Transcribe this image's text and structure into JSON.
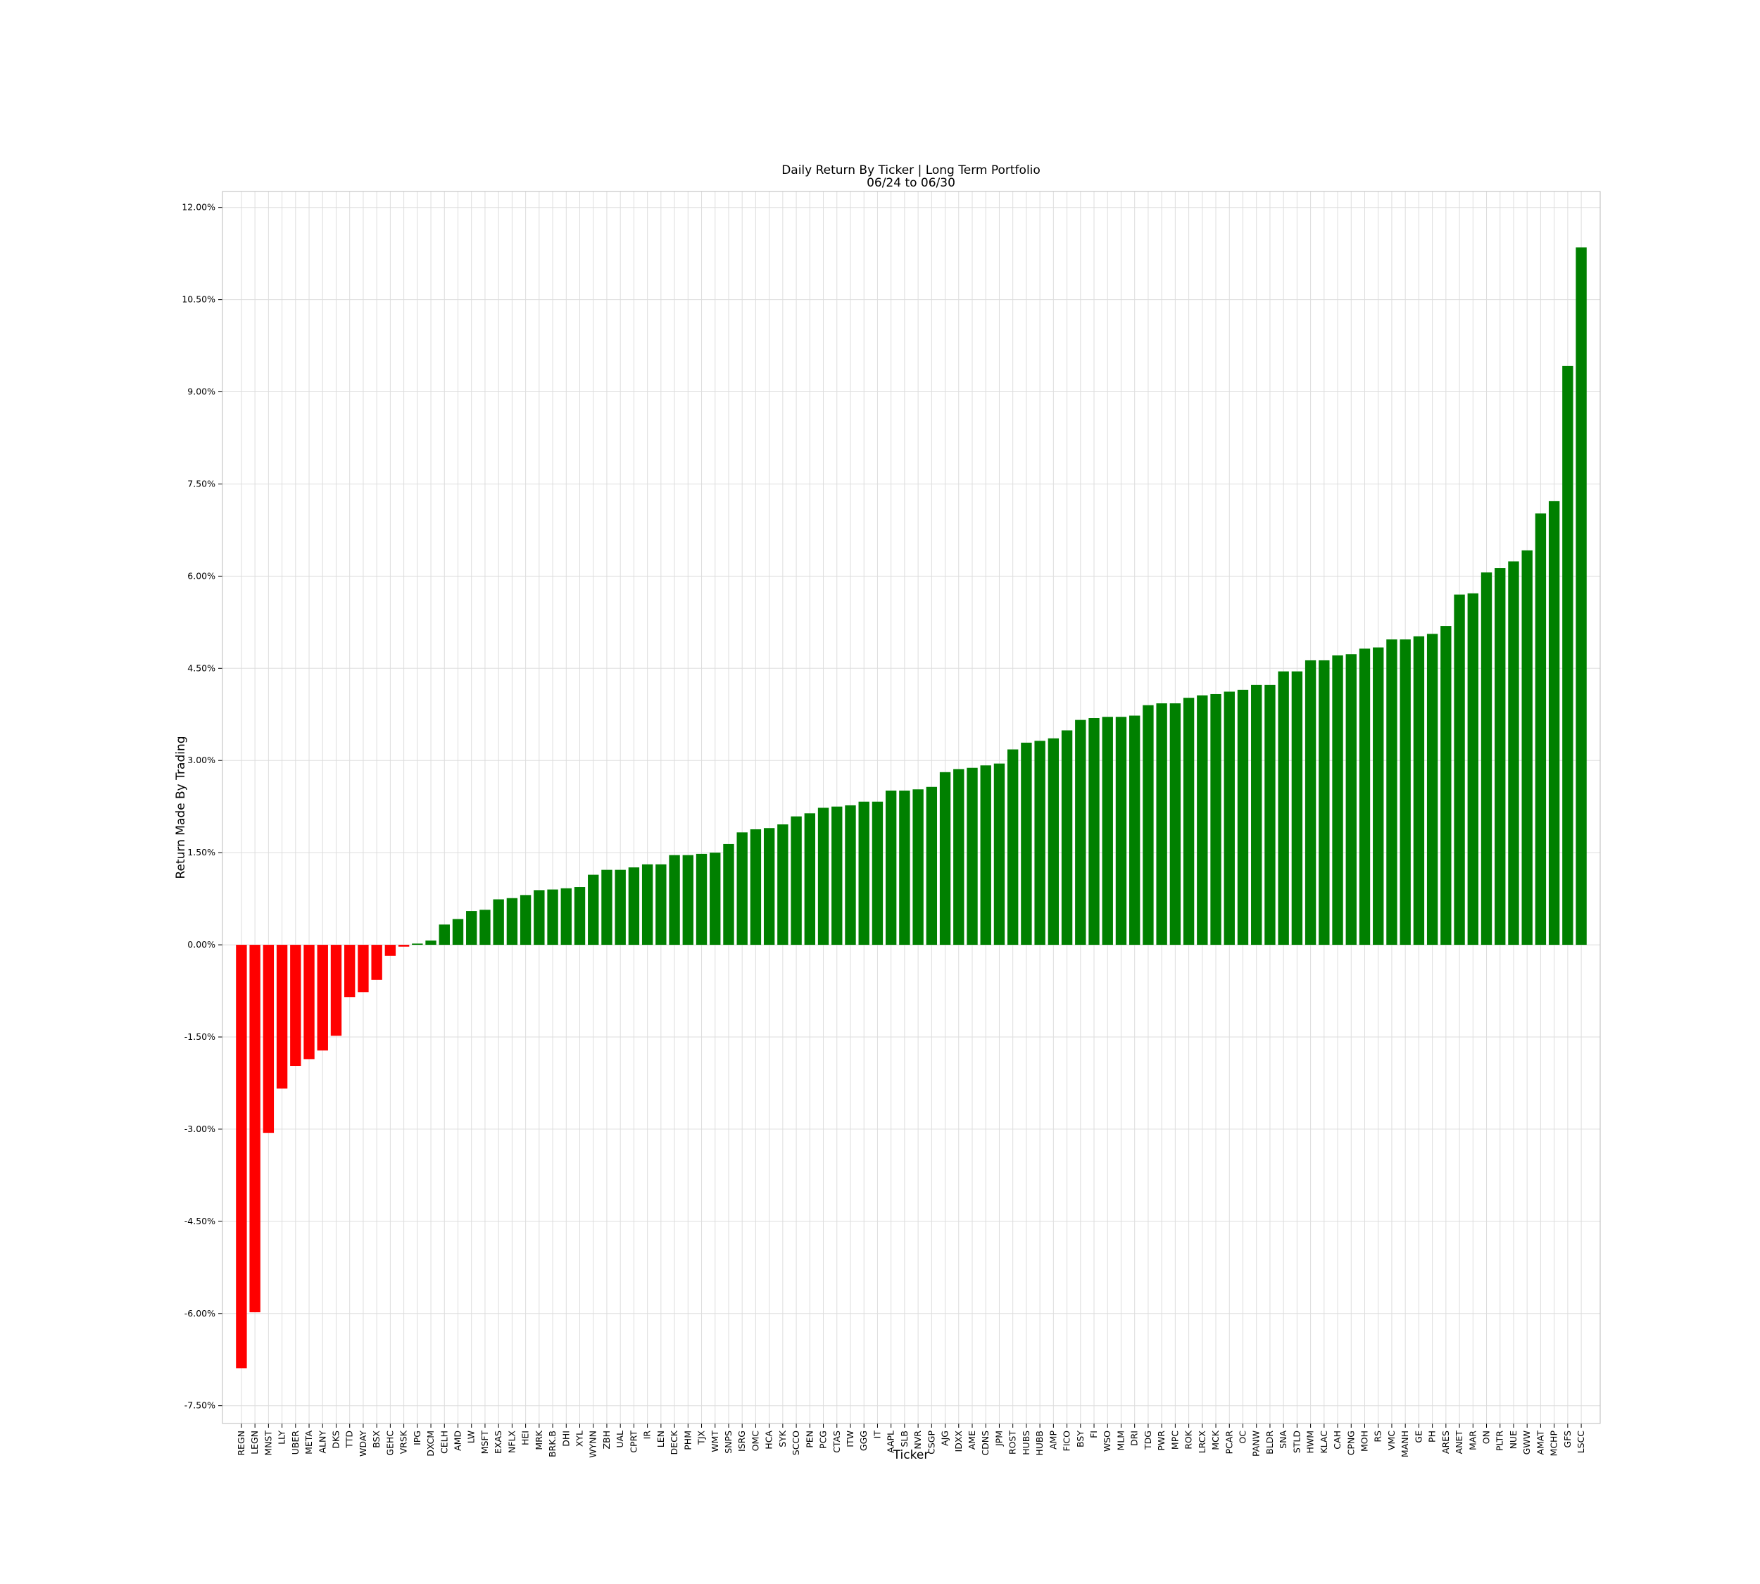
{
  "chart_data": {
    "type": "bar",
    "title": "Daily Return By Ticker | Long Term Portfolio",
    "subtitle": "06/24 to 06/30",
    "x_label": "Ticker",
    "y_label": "Return Made By Trading",
    "categories": [
      "REGN",
      "LEGN",
      "MNST",
      "LLY",
      "UBER",
      "META",
      "ALNY",
      "DKS",
      "TTD",
      "WDAY",
      "BSX",
      "GEHC",
      "VRSK",
      "IPG",
      "DXCM",
      "CELH",
      "AMD",
      "LW",
      "MSFT",
      "EXAS",
      "NFLX",
      "HEI",
      "MRK",
      "BRK.B",
      "DHI",
      "XYL",
      "WYNN",
      "ZBH",
      "UAL",
      "CPRT",
      "IR",
      "LEN",
      "DECK",
      "PHM",
      "TJX",
      "WMT",
      "SNPS",
      "ISRG",
      "OMC",
      "HCA",
      "SYK",
      "SCCO",
      "PEN",
      "PCG",
      "CTAS",
      "ITW",
      "GGG",
      "IT",
      "AAPL",
      "SLB",
      "NVR",
      "CSGP",
      "AJG",
      "IDXX",
      "AME",
      "CDNS",
      "JPM",
      "ROST",
      "HUBS",
      "HUBB",
      "AMP",
      "FICO",
      "BSY",
      "FI",
      "WSO",
      "MLM",
      "DRI",
      "TDG",
      "PWR",
      "MPC",
      "ROK",
      "LRCX",
      "MCK",
      "PCAR",
      "OC",
      "PANW",
      "BLDR",
      "SNA",
      "STLD",
      "HWM",
      "KLAC",
      "CAH",
      "CPNG",
      "MOH",
      "RS",
      "VMC",
      "MANH",
      "GE",
      "PH",
      "ARES",
      "ANET",
      "MAR",
      "ON",
      "PLTR",
      "NUE",
      "GWW",
      "AMAT",
      "MCHP",
      "GFS",
      "LSCC"
    ],
    "values": [
      -6.89,
      -5.98,
      -3.06,
      -2.34,
      -1.97,
      -1.86,
      -1.72,
      -1.48,
      -0.85,
      -0.77,
      -0.57,
      -0.18,
      -0.03,
      0.02,
      0.07,
      0.33,
      0.42,
      0.55,
      0.57,
      0.74,
      0.76,
      0.81,
      0.89,
      0.9,
      0.92,
      0.94,
      1.14,
      1.22,
      1.22,
      1.26,
      1.31,
      1.31,
      1.46,
      1.46,
      1.48,
      1.5,
      1.64,
      1.83,
      1.88,
      1.9,
      1.96,
      2.09,
      2.14,
      2.23,
      2.25,
      2.27,
      2.33,
      2.33,
      2.51,
      2.51,
      2.53,
      2.57,
      2.81,
      2.86,
      2.88,
      2.92,
      2.95,
      3.18,
      3.29,
      3.32,
      3.36,
      3.49,
      3.66,
      3.69,
      3.71,
      3.71,
      3.73,
      3.9,
      3.93,
      3.93,
      4.02,
      4.06,
      4.08,
      4.12,
      4.15,
      4.23,
      4.23,
      4.45,
      4.45,
      4.63,
      4.63,
      4.71,
      4.73,
      4.82,
      4.84,
      4.97,
      4.97,
      5.02,
      5.06,
      5.19,
      5.7,
      5.72,
      6.06,
      6.13,
      6.24,
      6.42,
      7.02,
      7.22,
      9.42,
      11.35
    ],
    "positive_color": "#008000",
    "negative_color": "#ff0000",
    "ylim": [
      -7.79,
      12.26
    ],
    "yticks": [
      {
        "value": -7.5,
        "label": "-7.50%"
      },
      {
        "value": -6,
        "label": "-6.00%"
      },
      {
        "value": -4.5,
        "label": "-4.50%"
      },
      {
        "value": -3,
        "label": "-3.00%"
      },
      {
        "value": -1.5,
        "label": "-1.50%"
      },
      {
        "value": 0,
        "label": "0.00%"
      },
      {
        "value": 1.5,
        "label": "1.50%"
      },
      {
        "value": 3,
        "label": "3.00%"
      },
      {
        "value": 4.5,
        "label": "4.50%"
      },
      {
        "value": 6,
        "label": "6.00%"
      },
      {
        "value": 7.5,
        "label": "7.50%"
      },
      {
        "value": 9,
        "label": "9.00%"
      },
      {
        "value": 10.5,
        "label": "10.50%"
      },
      {
        "value": 12,
        "label": "12.00%"
      }
    ],
    "grid": true
  }
}
